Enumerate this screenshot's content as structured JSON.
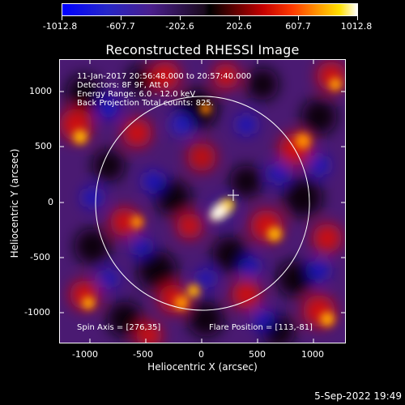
{
  "colorbar": {
    "labels": [
      "-1012.8",
      "-607.7",
      "-202.6",
      "202.6",
      "607.7",
      "1012.8"
    ]
  },
  "title": "Reconstructed RHESSI Image",
  "info": {
    "line1": "11-Jan-2017 20:56:48.000 to 20:57:40.000",
    "line2": "Detectors: 8F 9F, Att 0",
    "line3": "Energy Range: 6.0 - 12.0 keV",
    "line4": "Back Projection   Total counts: 825.",
    "spin_axis": "Spin Axis = [276,35]",
    "flare_position": "Flare Position = [113,-81]"
  },
  "axes": {
    "xlabel": "Heliocentric X (arcsec)",
    "ylabel": "Heliocentric Y (arcsec)",
    "xticks": [
      "-1000",
      "-500",
      "0",
      "500",
      "1000"
    ],
    "yticks": [
      "1000",
      "500",
      "0",
      "-500",
      "-1000"
    ]
  },
  "date": "5-Sep-2022 19:49"
}
